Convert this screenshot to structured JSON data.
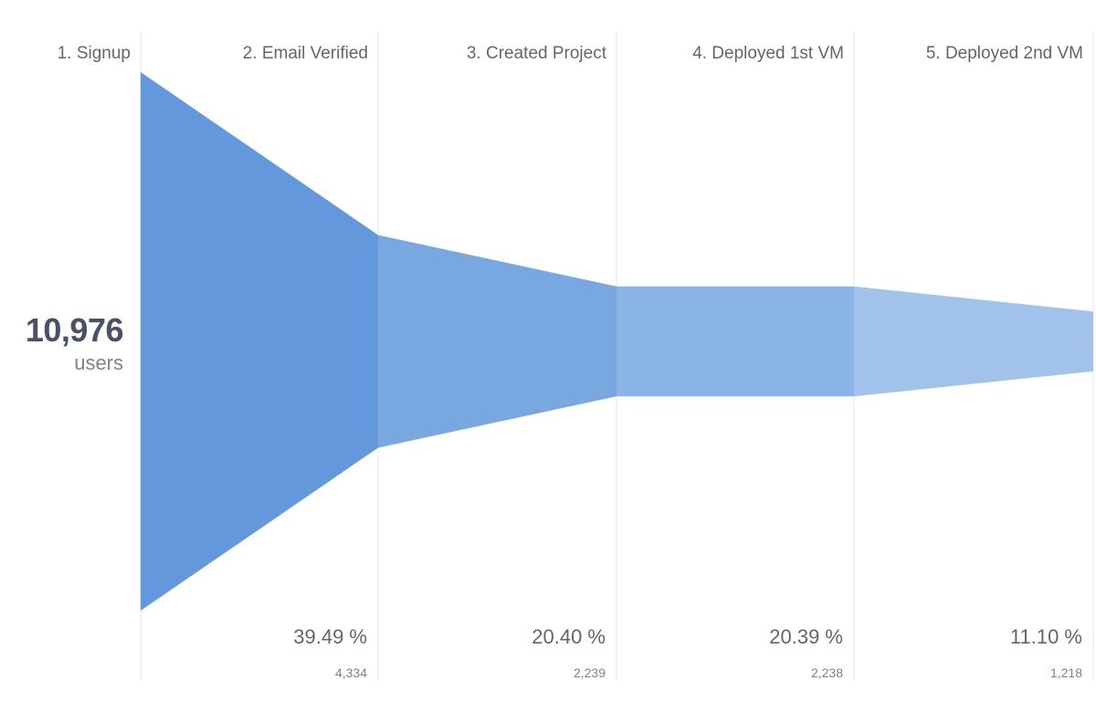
{
  "chart_data": {
    "type": "funnel",
    "title": "",
    "total": {
      "value": "10,976",
      "unit": "users"
    },
    "steps": [
      {
        "label": "1. Signup",
        "users": 10976,
        "percent_label": "",
        "count_label": ""
      },
      {
        "label": "2. Email Verified",
        "users": 4334,
        "percent_label": "39.49 %",
        "count_label": "4,334"
      },
      {
        "label": "3. Created Project",
        "users": 2239,
        "percent_label": "20.40 %",
        "count_label": "2,239"
      },
      {
        "label": "4. Deployed 1st VM",
        "users": 2238,
        "percent_label": "20.39 %",
        "count_label": "2,238"
      },
      {
        "label": "5. Deployed 2nd VM",
        "users": 1218,
        "percent_label": "11.10 %",
        "count_label": "1,218"
      }
    ],
    "colors": [
      "#6399dc",
      "#79a8e1",
      "#8ab3e6",
      "#a1c2ea"
    ]
  }
}
